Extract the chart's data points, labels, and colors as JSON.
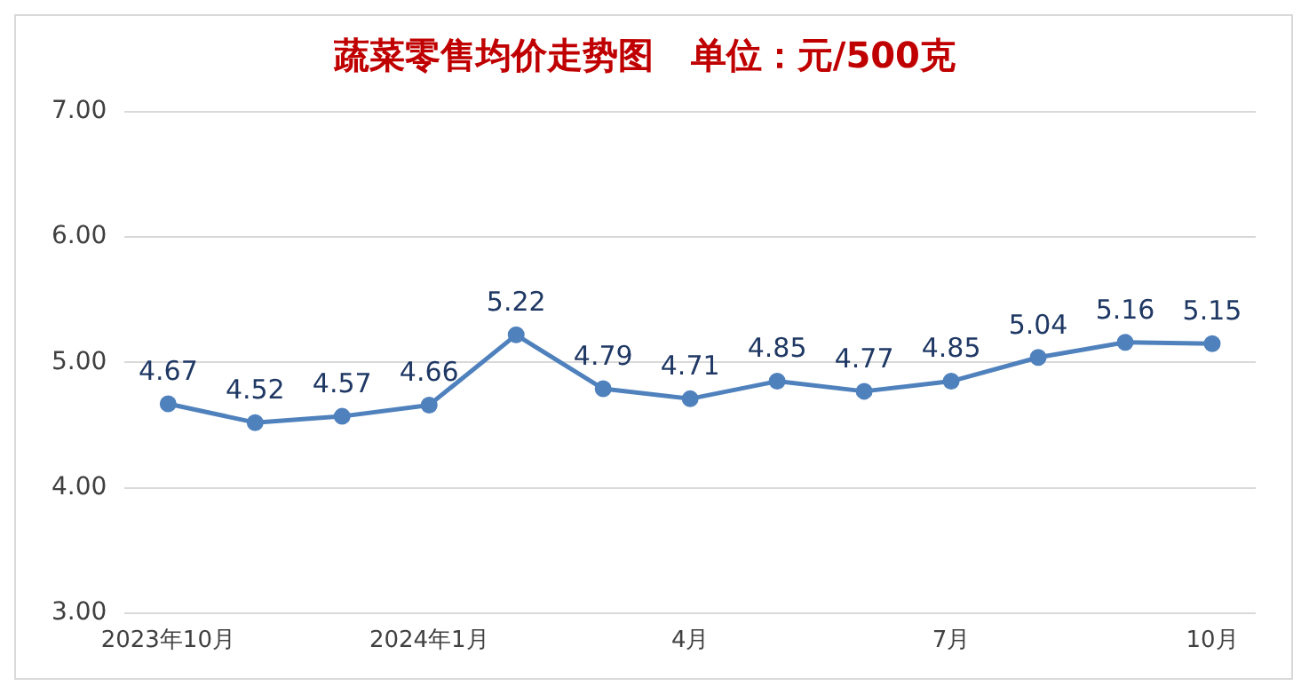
{
  "chart_data": {
    "type": "line",
    "title": "蔬菜零售均价走势图   单位：元/500克",
    "categories": [
      "2023年10月",
      null,
      null,
      "2024年1月",
      null,
      null,
      "4月",
      null,
      null,
      "7月",
      null,
      null,
      "10月"
    ],
    "series": [
      {
        "color": "#4f81bd",
        "values": [
          4.67,
          4.52,
          4.57,
          4.66,
          5.22,
          4.79,
          4.71,
          4.85,
          4.77,
          4.85,
          5.04,
          5.16,
          5.15
        ]
      }
    ],
    "ylim": [
      3,
      7
    ],
    "yticks": [
      {
        "value": 3,
        "label": "3.00"
      },
      {
        "value": 4,
        "label": "4.00"
      },
      {
        "value": 5,
        "label": "5.00"
      },
      {
        "value": 6,
        "label": "6.00"
      },
      {
        "value": 7,
        "label": "7.00"
      }
    ],
    "grid": "y",
    "legend": false,
    "marker": "circle",
    "line_style": "solid",
    "data_labels": true
  }
}
